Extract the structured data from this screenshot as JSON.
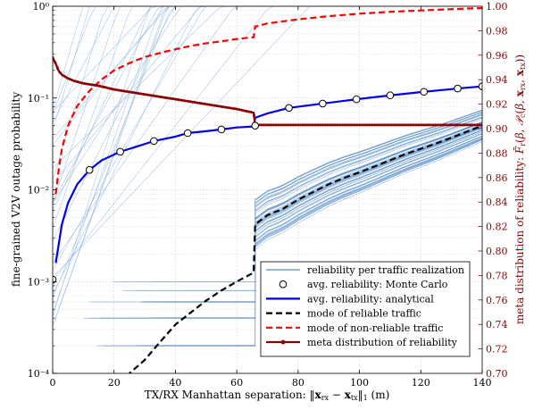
{
  "chart_data": {
    "type": "line",
    "xlabel": "TX/RX Manhattan separation: ‖x_rx − x_tx‖₁ (m)",
    "ylabel_left": "fine-grained V2V outage probability",
    "ylabel_right": "meta distribution of reliability: F̄_r(β, P_c(β, x_rx, x_tx))",
    "xlim": [
      0,
      140
    ],
    "ylim_left": [
      0.0001,
      1
    ],
    "yscale_left": "log",
    "ylim_right": [
      0.7,
      1.0
    ],
    "grid": true,
    "legend_position": "bottom-right",
    "x_ticks": [
      0,
      20,
      40,
      60,
      80,
      100,
      120,
      140
    ],
    "left_ticks": [
      {
        "value": 0.0001,
        "label": "10⁻⁴"
      },
      {
        "value": 0.001,
        "label": "10⁻³"
      },
      {
        "value": 0.01,
        "label": "10⁻²"
      },
      {
        "value": 0.1,
        "label": "10⁻¹"
      },
      {
        "value": 1,
        "label": "10⁰"
      }
    ],
    "right_ticks": [
      "0.70",
      "0.72",
      "0.74",
      "0.76",
      "0.78",
      "0.80",
      "0.82",
      "0.84",
      "0.86",
      "0.88",
      "0.90",
      "0.92",
      "0.94",
      "0.96",
      "0.98",
      "1.00"
    ],
    "colors": {
      "blue": "#0000ee",
      "light_blue": "#3d7ec4",
      "red": "#ff0000",
      "dark_red": "#8b0000",
      "black": "#000000"
    },
    "series": [
      {
        "name": "reliability per traffic realization",
        "style": "thin-blue-bundle",
        "note_x": [
          0,
          140
        ]
      },
      {
        "name": "avg. reliability: Monte Carlo",
        "style": "circle-markers",
        "x": [
          0,
          12,
          22,
          33,
          44,
          55,
          66,
          77,
          88,
          99,
          110,
          121,
          132,
          140
        ],
        "y": [
          0.00105,
          0.0165,
          0.026,
          0.034,
          0.0415,
          0.0455,
          0.05,
          0.078,
          0.087,
          0.097,
          0.107,
          0.117,
          0.127,
          0.134
        ]
      },
      {
        "name": "avg. reliability: analytical",
        "style": "blue-solid",
        "x": [
          1,
          3,
          5,
          8,
          12,
          16,
          22,
          28,
          33,
          40,
          44,
          50,
          55,
          60,
          65.5,
          66,
          70,
          77,
          88,
          99,
          110,
          121,
          132,
          140
        ],
        "y": [
          0.0016,
          0.0042,
          0.0072,
          0.0115,
          0.0165,
          0.021,
          0.026,
          0.03,
          0.034,
          0.038,
          0.0415,
          0.0435,
          0.0455,
          0.0478,
          0.049,
          0.061,
          0.068,
          0.078,
          0.087,
          0.097,
          0.107,
          0.117,
          0.127,
          0.134
        ]
      },
      {
        "name": "mode of reliable traffic",
        "style": "black-dashed",
        "x": [
          20,
          25,
          30,
          35,
          40,
          45,
          50,
          55,
          60,
          65.5,
          66,
          70,
          75,
          80,
          85,
          90,
          95,
          100,
          105,
          110,
          115,
          120,
          125,
          130,
          135,
          140
        ],
        "y": [
          6.35e-05,
          0.0001,
          0.00014,
          0.00022,
          0.00034,
          0.00046,
          0.00062,
          0.0008,
          0.001,
          0.00125,
          0.0042,
          0.0053,
          0.0062,
          0.0078,
          0.0095,
          0.0115,
          0.0135,
          0.0155,
          0.018,
          0.021,
          0.0245,
          0.028,
          0.032,
          0.037,
          0.043,
          0.05
        ]
      },
      {
        "name": "mode of non-reliable traffic",
        "style": "red-dashed",
        "x": [
          1,
          2,
          3,
          5,
          8,
          12,
          16,
          20,
          25,
          30,
          35,
          40,
          45,
          50,
          55,
          60,
          65.5,
          66,
          70,
          80,
          90,
          100,
          110,
          120,
          130,
          140
        ],
        "y": [
          0.009,
          0.017,
          0.028,
          0.05,
          0.082,
          0.12,
          0.16,
          0.2,
          0.24,
          0.28,
          0.31,
          0.34,
          0.37,
          0.395,
          0.415,
          0.44,
          0.46,
          0.6,
          0.65,
          0.72,
          0.78,
          0.83,
          0.87,
          0.9,
          0.93,
          0.955
        ]
      },
      {
        "name": "meta distribution of reliability",
        "style": "darkred-line-markers",
        "axis": "right",
        "x": [
          0,
          1,
          2,
          3,
          5,
          7,
          10,
          15,
          20,
          25,
          30,
          35,
          40,
          45,
          50,
          55,
          60,
          65.5,
          66,
          70,
          80,
          90,
          100,
          110,
          120,
          130,
          140
        ],
        "y": [
          0.958,
          0.953,
          0.947,
          0.944,
          0.941,
          0.939,
          0.937,
          0.935,
          0.932,
          0.93,
          0.928,
          0.926,
          0.924,
          0.922,
          0.92,
          0.918,
          0.916,
          0.913,
          0.903,
          0.903,
          0.903,
          0.903,
          0.903,
          0.903,
          0.903,
          0.903,
          0.903
        ]
      }
    ]
  }
}
